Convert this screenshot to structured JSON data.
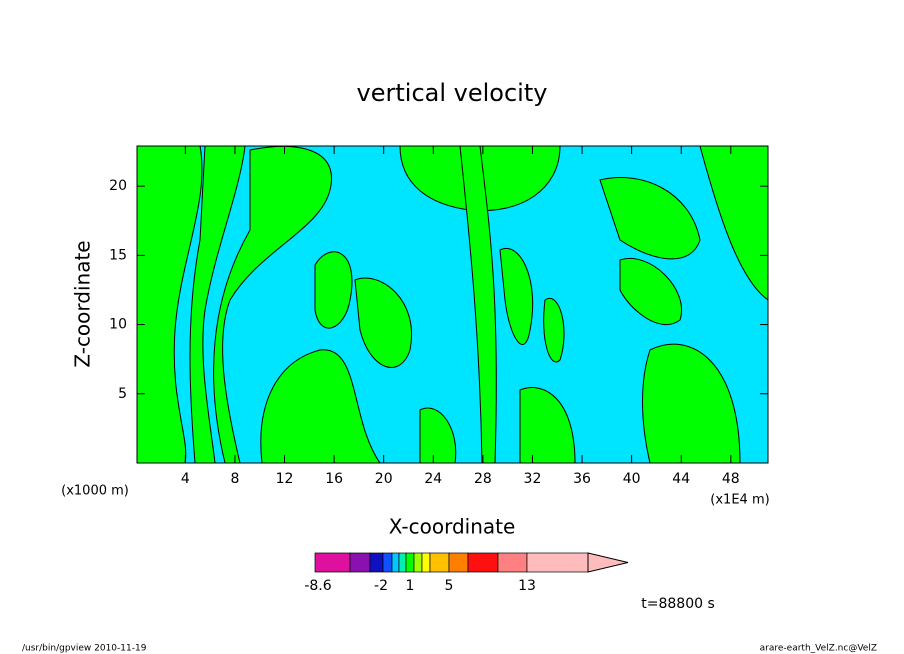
{
  "chart_data": {
    "type": "contour",
    "title": "vertical velocity",
    "xlabel": "X-coordinate",
    "ylabel": "Z-coordinate",
    "x_unit_left": "(x1000 m)",
    "x_unit_right": "(x1E4 m)",
    "time_label": "t=88800 s",
    "footer_left": "/usr/bin/gpview  2010-11-19",
    "footer_right": "arare-earth_VelZ.nc@VelZ",
    "xlim": [
      0.1,
      51.0
    ],
    "xticks": [
      4,
      8,
      12,
      16,
      20,
      24,
      28,
      32,
      36,
      40,
      44,
      48
    ],
    "ylim": [
      0,
      22.9
    ],
    "yticks": [
      5,
      10,
      15,
      20
    ],
    "field_colors": [
      "#00e5ff",
      "#00ff00"
    ],
    "colorbar": {
      "colors": [
        "#e0109f",
        "#8a10b0",
        "#1010c0",
        "#1050ff",
        "#00c8ff",
        "#00f0b0",
        "#00ff00",
        "#a0ff00",
        "#ffff00",
        "#ffc000",
        "#ff8000",
        "#ff1010",
        "#ff8080",
        "#ffbcbc"
      ],
      "labels": [
        -8.6,
        -2,
        1,
        5,
        13
      ]
    }
  }
}
